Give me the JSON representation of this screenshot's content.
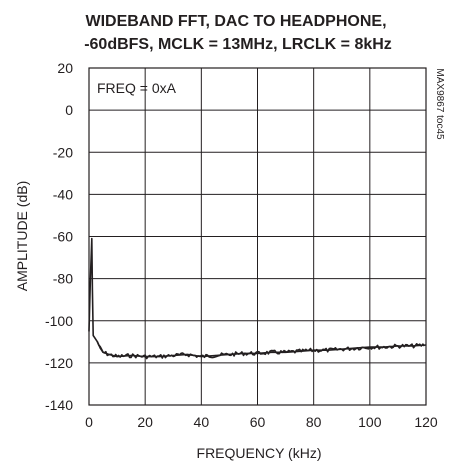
{
  "chart_data": {
    "type": "line",
    "title_line1": "WIDEBAND FFT, DAC TO HEADPHONE,",
    "title_line2": "-60dBFS, MCLK = 13MHz, LRCLK = 8kHz",
    "xlabel": "FREQUENCY (kHz)",
    "ylabel": "AMPLITUDE (dB)",
    "xlim": [
      0,
      120
    ],
    "ylim": [
      -140,
      20
    ],
    "x_ticks": [
      "0",
      "20",
      "40",
      "60",
      "80",
      "100",
      "120"
    ],
    "y_ticks": [
      "20",
      "0",
      "-20",
      "-40",
      "-60",
      "-80",
      "-100",
      "-120",
      "-140"
    ],
    "grid": true,
    "annotation": "FREQ = 0xA",
    "part_number": "MAX9867 toc45",
    "series": [
      {
        "x": [
          0,
          0.5,
          1.0,
          1.2,
          1.5,
          2,
          3,
          4,
          5,
          7,
          10,
          15,
          20,
          25,
          30,
          35,
          40,
          45,
          50,
          55,
          60,
          65,
          70,
          75,
          80,
          85,
          90,
          95,
          100,
          105,
          110,
          115,
          120
        ],
        "y": [
          -105,
          -80,
          -61,
          -85,
          -107,
          -108,
          -110,
          -113,
          -115,
          -116,
          -117,
          -116.5,
          -117,
          -117,
          -116.5,
          -116,
          -117,
          -116.5,
          -116,
          -115.5,
          -115.5,
          -115,
          -115,
          -114.5,
          -114,
          -114,
          -113.5,
          -113,
          -112.5,
          -112.5,
          -112,
          -112,
          -111.5
        ]
      }
    ]
  }
}
